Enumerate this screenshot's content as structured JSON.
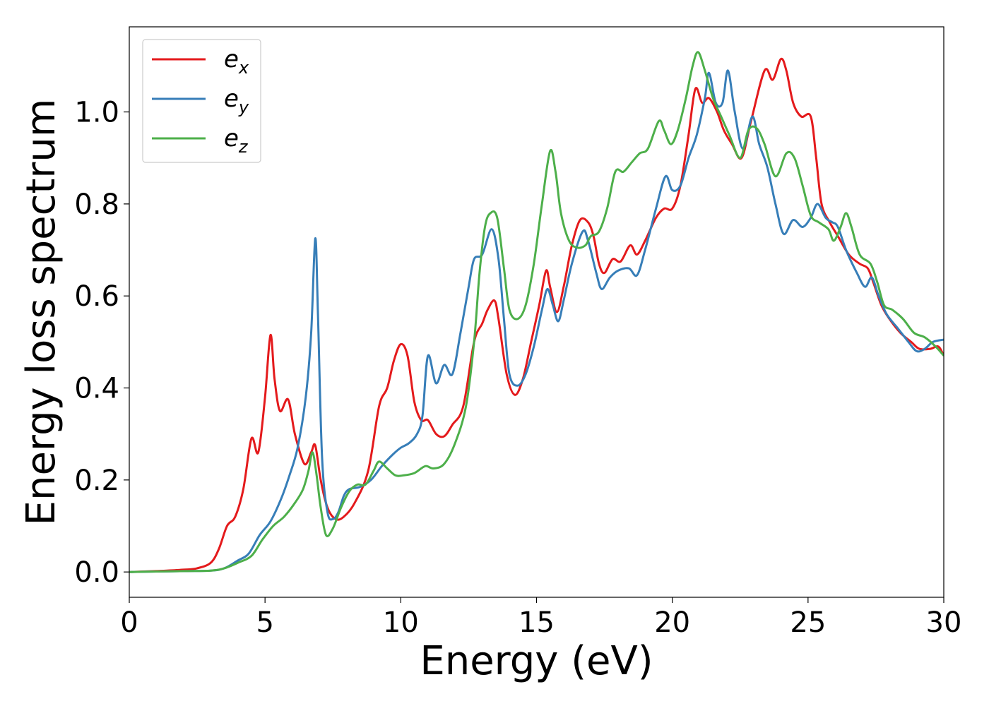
{
  "chart_data": {
    "type": "line",
    "xlabel": "Energy (eV)",
    "ylabel": "Energy loss spectrum",
    "xlim": [
      0,
      30
    ],
    "ylim": [
      -0.055,
      1.185
    ],
    "xticks": [
      0,
      5,
      10,
      15,
      20,
      25,
      30
    ],
    "yticks": [
      0.0,
      0.2,
      0.4,
      0.6,
      0.8,
      1.0
    ],
    "xtick_labels": [
      "0",
      "5",
      "10",
      "15",
      "20",
      "25",
      "30"
    ],
    "ytick_labels": [
      "0.0",
      "0.2",
      "0.4",
      "0.6",
      "0.8",
      "1.0"
    ],
    "grid": false,
    "legend_position": "top-left",
    "series": [
      {
        "name": "e",
        "subscript": "x",
        "color": "#e41a1c",
        "points": [
          [
            0,
            0
          ],
          [
            1,
            0.002
          ],
          [
            2,
            0.005
          ],
          [
            2.5,
            0.008
          ],
          [
            3,
            0.02
          ],
          [
            3.3,
            0.05
          ],
          [
            3.6,
            0.1
          ],
          [
            3.9,
            0.12
          ],
          [
            4.2,
            0.18
          ],
          [
            4.5,
            0.29
          ],
          [
            4.75,
            0.26
          ],
          [
            5.0,
            0.38
          ],
          [
            5.2,
            0.515
          ],
          [
            5.35,
            0.42
          ],
          [
            5.55,
            0.35
          ],
          [
            5.85,
            0.375
          ],
          [
            6.1,
            0.3
          ],
          [
            6.45,
            0.235
          ],
          [
            6.7,
            0.26
          ],
          [
            6.85,
            0.275
          ],
          [
            7.05,
            0.2
          ],
          [
            7.3,
            0.14
          ],
          [
            7.6,
            0.115
          ],
          [
            7.9,
            0.12
          ],
          [
            8.3,
            0.15
          ],
          [
            8.8,
            0.22
          ],
          [
            9.2,
            0.36
          ],
          [
            9.5,
            0.4
          ],
          [
            9.75,
            0.46
          ],
          [
            10.0,
            0.495
          ],
          [
            10.25,
            0.47
          ],
          [
            10.5,
            0.37
          ],
          [
            10.75,
            0.33
          ],
          [
            11.0,
            0.33
          ],
          [
            11.3,
            0.3
          ],
          [
            11.6,
            0.295
          ],
          [
            11.9,
            0.32
          ],
          [
            12.3,
            0.36
          ],
          [
            12.7,
            0.5
          ],
          [
            13.0,
            0.54
          ],
          [
            13.2,
            0.57
          ],
          [
            13.45,
            0.59
          ],
          [
            13.6,
            0.55
          ],
          [
            13.9,
            0.43
          ],
          [
            14.2,
            0.385
          ],
          [
            14.5,
            0.42
          ],
          [
            14.8,
            0.5
          ],
          [
            15.1,
            0.58
          ],
          [
            15.35,
            0.655
          ],
          [
            15.5,
            0.62
          ],
          [
            15.75,
            0.565
          ],
          [
            16.0,
            0.62
          ],
          [
            16.3,
            0.71
          ],
          [
            16.6,
            0.765
          ],
          [
            16.9,
            0.76
          ],
          [
            17.1,
            0.73
          ],
          [
            17.3,
            0.67
          ],
          [
            17.5,
            0.65
          ],
          [
            17.8,
            0.68
          ],
          [
            18.1,
            0.675
          ],
          [
            18.45,
            0.71
          ],
          [
            18.7,
            0.69
          ],
          [
            19.0,
            0.72
          ],
          [
            19.4,
            0.77
          ],
          [
            19.7,
            0.79
          ],
          [
            20.0,
            0.79
          ],
          [
            20.3,
            0.84
          ],
          [
            20.6,
            0.95
          ],
          [
            20.85,
            1.05
          ],
          [
            21.1,
            1.02
          ],
          [
            21.35,
            1.03
          ],
          [
            21.65,
            1.0
          ],
          [
            21.9,
            0.96
          ],
          [
            22.2,
            0.93
          ],
          [
            22.55,
            0.9
          ],
          [
            22.9,
            0.98
          ],
          [
            23.4,
            1.09
          ],
          [
            23.7,
            1.07
          ],
          [
            24.0,
            1.115
          ],
          [
            24.2,
            1.09
          ],
          [
            24.45,
            1.02
          ],
          [
            24.75,
            0.99
          ],
          [
            25.1,
            0.99
          ],
          [
            25.3,
            0.9
          ],
          [
            25.5,
            0.8
          ],
          [
            25.8,
            0.76
          ],
          [
            26.1,
            0.73
          ],
          [
            26.5,
            0.69
          ],
          [
            26.9,
            0.67
          ],
          [
            27.2,
            0.66
          ],
          [
            27.4,
            0.63
          ],
          [
            27.7,
            0.58
          ],
          [
            28.0,
            0.55
          ],
          [
            28.4,
            0.52
          ],
          [
            28.8,
            0.5
          ],
          [
            29.1,
            0.485
          ],
          [
            29.5,
            0.485
          ],
          [
            29.8,
            0.49
          ],
          [
            30.0,
            0.47
          ]
        ]
      },
      {
        "name": "e",
        "subscript": "y",
        "color": "#377eb8",
        "points": [
          [
            0,
            0
          ],
          [
            1,
            0.001
          ],
          [
            2,
            0.002
          ],
          [
            3,
            0.003
          ],
          [
            3.5,
            0.008
          ],
          [
            4.0,
            0.025
          ],
          [
            4.4,
            0.04
          ],
          [
            4.8,
            0.08
          ],
          [
            5.2,
            0.11
          ],
          [
            5.6,
            0.16
          ],
          [
            5.9,
            0.21
          ],
          [
            6.2,
            0.27
          ],
          [
            6.5,
            0.38
          ],
          [
            6.7,
            0.52
          ],
          [
            6.85,
            0.725
          ],
          [
            6.95,
            0.56
          ],
          [
            7.1,
            0.25
          ],
          [
            7.3,
            0.13
          ],
          [
            7.5,
            0.115
          ],
          [
            7.7,
            0.13
          ],
          [
            7.9,
            0.165
          ],
          [
            8.1,
            0.18
          ],
          [
            8.5,
            0.185
          ],
          [
            8.9,
            0.2
          ],
          [
            9.3,
            0.23
          ],
          [
            9.7,
            0.255
          ],
          [
            10.0,
            0.27
          ],
          [
            10.3,
            0.28
          ],
          [
            10.6,
            0.3
          ],
          [
            10.8,
            0.34
          ],
          [
            11.0,
            0.47
          ],
          [
            11.3,
            0.41
          ],
          [
            11.6,
            0.45
          ],
          [
            11.9,
            0.43
          ],
          [
            12.2,
            0.52
          ],
          [
            12.5,
            0.62
          ],
          [
            12.7,
            0.68
          ],
          [
            13.0,
            0.69
          ],
          [
            13.35,
            0.745
          ],
          [
            13.6,
            0.68
          ],
          [
            13.8,
            0.55
          ],
          [
            14.0,
            0.43
          ],
          [
            14.3,
            0.405
          ],
          [
            14.6,
            0.43
          ],
          [
            14.9,
            0.49
          ],
          [
            15.2,
            0.57
          ],
          [
            15.4,
            0.615
          ],
          [
            15.6,
            0.58
          ],
          [
            15.8,
            0.545
          ],
          [
            16.0,
            0.59
          ],
          [
            16.3,
            0.67
          ],
          [
            16.7,
            0.74
          ],
          [
            16.9,
            0.72
          ],
          [
            17.2,
            0.65
          ],
          [
            17.4,
            0.615
          ],
          [
            17.7,
            0.64
          ],
          [
            18.0,
            0.655
          ],
          [
            18.4,
            0.66
          ],
          [
            18.7,
            0.645
          ],
          [
            19.0,
            0.7
          ],
          [
            19.4,
            0.79
          ],
          [
            19.75,
            0.86
          ],
          [
            20.0,
            0.83
          ],
          [
            20.3,
            0.84
          ],
          [
            20.6,
            0.9
          ],
          [
            20.9,
            0.95
          ],
          [
            21.2,
            1.03
          ],
          [
            21.35,
            1.085
          ],
          [
            21.6,
            1.02
          ],
          [
            21.85,
            1.02
          ],
          [
            22.05,
            1.09
          ],
          [
            22.3,
            1.0
          ],
          [
            22.6,
            0.92
          ],
          [
            22.95,
            0.99
          ],
          [
            23.2,
            0.93
          ],
          [
            23.5,
            0.88
          ],
          [
            23.8,
            0.8
          ],
          [
            24.1,
            0.735
          ],
          [
            24.45,
            0.765
          ],
          [
            24.8,
            0.75
          ],
          [
            25.1,
            0.77
          ],
          [
            25.35,
            0.8
          ],
          [
            25.65,
            0.77
          ],
          [
            25.9,
            0.76
          ],
          [
            26.1,
            0.75
          ],
          [
            26.4,
            0.7
          ],
          [
            26.8,
            0.65
          ],
          [
            27.1,
            0.62
          ],
          [
            27.35,
            0.64
          ],
          [
            27.6,
            0.6
          ],
          [
            27.9,
            0.56
          ],
          [
            28.3,
            0.53
          ],
          [
            28.7,
            0.5
          ],
          [
            29.0,
            0.48
          ],
          [
            29.3,
            0.485
          ],
          [
            29.6,
            0.5
          ],
          [
            30.0,
            0.505
          ]
        ]
      },
      {
        "name": "e",
        "subscript": "z",
        "color": "#4daf4a",
        "points": [
          [
            0,
            0
          ],
          [
            1,
            0.001
          ],
          [
            2,
            0.002
          ],
          [
            3,
            0.003
          ],
          [
            3.5,
            0.008
          ],
          [
            4.0,
            0.02
          ],
          [
            4.5,
            0.035
          ],
          [
            4.9,
            0.07
          ],
          [
            5.3,
            0.1
          ],
          [
            5.7,
            0.12
          ],
          [
            6.1,
            0.15
          ],
          [
            6.4,
            0.18
          ],
          [
            6.6,
            0.22
          ],
          [
            6.75,
            0.26
          ],
          [
            6.9,
            0.21
          ],
          [
            7.05,
            0.14
          ],
          [
            7.25,
            0.08
          ],
          [
            7.5,
            0.095
          ],
          [
            7.8,
            0.14
          ],
          [
            8.1,
            0.175
          ],
          [
            8.4,
            0.19
          ],
          [
            8.7,
            0.19
          ],
          [
            9.0,
            0.22
          ],
          [
            9.2,
            0.24
          ],
          [
            9.5,
            0.225
          ],
          [
            9.8,
            0.21
          ],
          [
            10.1,
            0.21
          ],
          [
            10.5,
            0.215
          ],
          [
            10.9,
            0.23
          ],
          [
            11.2,
            0.225
          ],
          [
            11.6,
            0.235
          ],
          [
            12.0,
            0.28
          ],
          [
            12.4,
            0.36
          ],
          [
            12.7,
            0.5
          ],
          [
            12.9,
            0.65
          ],
          [
            13.1,
            0.75
          ],
          [
            13.3,
            0.78
          ],
          [
            13.55,
            0.77
          ],
          [
            13.8,
            0.66
          ],
          [
            14.0,
            0.57
          ],
          [
            14.3,
            0.55
          ],
          [
            14.6,
            0.58
          ],
          [
            14.9,
            0.67
          ],
          [
            15.2,
            0.8
          ],
          [
            15.5,
            0.915
          ],
          [
            15.7,
            0.87
          ],
          [
            15.9,
            0.78
          ],
          [
            16.2,
            0.72
          ],
          [
            16.5,
            0.705
          ],
          [
            16.8,
            0.71
          ],
          [
            17.0,
            0.73
          ],
          [
            17.3,
            0.74
          ],
          [
            17.6,
            0.79
          ],
          [
            17.9,
            0.87
          ],
          [
            18.2,
            0.87
          ],
          [
            18.5,
            0.89
          ],
          [
            18.8,
            0.91
          ],
          [
            19.1,
            0.92
          ],
          [
            19.5,
            0.98
          ],
          [
            19.7,
            0.96
          ],
          [
            19.95,
            0.93
          ],
          [
            20.2,
            0.96
          ],
          [
            20.5,
            1.03
          ],
          [
            20.75,
            1.1
          ],
          [
            20.95,
            1.13
          ],
          [
            21.2,
            1.09
          ],
          [
            21.5,
            1.03
          ],
          [
            21.8,
            0.99
          ],
          [
            22.1,
            0.95
          ],
          [
            22.5,
            0.9
          ],
          [
            22.8,
            0.96
          ],
          [
            23.1,
            0.965
          ],
          [
            23.4,
            0.93
          ],
          [
            23.8,
            0.86
          ],
          [
            24.2,
            0.91
          ],
          [
            24.5,
            0.9
          ],
          [
            24.8,
            0.84
          ],
          [
            25.1,
            0.775
          ],
          [
            25.4,
            0.76
          ],
          [
            25.75,
            0.745
          ],
          [
            25.95,
            0.72
          ],
          [
            26.2,
            0.75
          ],
          [
            26.4,
            0.78
          ],
          [
            26.6,
            0.75
          ],
          [
            26.9,
            0.69
          ],
          [
            27.3,
            0.67
          ],
          [
            27.55,
            0.63
          ],
          [
            27.8,
            0.58
          ],
          [
            28.1,
            0.57
          ],
          [
            28.5,
            0.55
          ],
          [
            28.9,
            0.52
          ],
          [
            29.3,
            0.51
          ],
          [
            29.7,
            0.49
          ],
          [
            30.0,
            0.47
          ]
        ]
      }
    ]
  }
}
